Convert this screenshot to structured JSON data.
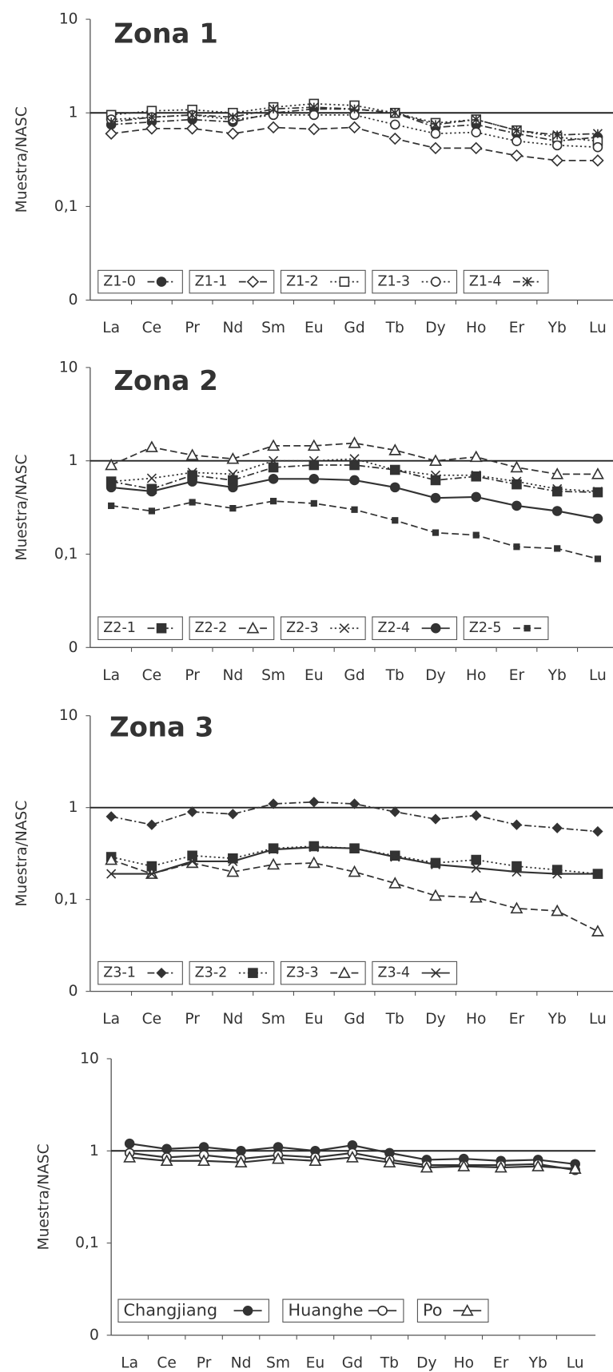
{
  "chart_data": [
    {
      "type": "line",
      "title": "Zona 1",
      "y_label": "Muestra/NASC",
      "log_scale": true,
      "hline": 1,
      "categories": [
        "La",
        "Ce",
        "Pr",
        "Nd",
        "Sm",
        "Eu",
        "Gd",
        "Tb",
        "Dy",
        "Ho",
        "Er",
        "Yb",
        "Lu"
      ],
      "ylim": [
        0.01,
        10
      ],
      "yticks": [
        {
          "value": 0.01,
          "label": "0"
        },
        {
          "value": 0.1,
          "label": "0,1"
        },
        1,
        10
      ],
      "series": [
        {
          "name": "Z1-0",
          "color": "#333333",
          "marker": "circle-filled",
          "dash": "dashdot",
          "values": [
            0.75,
            0.8,
            0.85,
            0.8,
            1.0,
            1.1,
            1.1,
            1.0,
            0.7,
            0.75,
            0.6,
            0.5,
            0.55
          ]
        },
        {
          "name": "Z1-1",
          "color": "#333333",
          "marker": "diamond-open",
          "dash": "dashed",
          "values": [
            0.6,
            0.68,
            0.68,
            0.6,
            0.7,
            0.67,
            0.7,
            0.53,
            0.42,
            0.42,
            0.35,
            0.31,
            0.31
          ]
        },
        {
          "name": "Z1-2",
          "color": "#333333",
          "marker": "square-open",
          "dash": "dotted",
          "values": [
            0.95,
            1.05,
            1.08,
            1.0,
            1.15,
            1.25,
            1.2,
            1.0,
            0.78,
            0.85,
            0.65,
            0.55,
            0.5
          ]
        },
        {
          "name": "Z1-3",
          "color": "#333333",
          "marker": "circle-open",
          "dash": "dotted",
          "values": [
            0.85,
            0.9,
            0.95,
            0.85,
            0.95,
            0.95,
            0.95,
            0.75,
            0.6,
            0.62,
            0.5,
            0.45,
            0.43
          ]
        },
        {
          "name": "Z1-4",
          "color": "#333333",
          "marker": "asterisk",
          "dash": "dashdot",
          "values": [
            0.8,
            0.9,
            0.95,
            0.9,
            1.1,
            1.15,
            1.1,
            1.0,
            0.75,
            0.85,
            0.65,
            0.58,
            0.6
          ]
        }
      ]
    },
    {
      "type": "line",
      "title": "Zona 2",
      "y_label": "Muestra/NASC",
      "log_scale": true,
      "hline": 1,
      "categories": [
        "La",
        "Ce",
        "Pr",
        "Nd",
        "Sm",
        "Eu",
        "Gd",
        "Tb",
        "Dy",
        "Ho",
        "Er",
        "Yb",
        "Lu"
      ],
      "ylim": [
        0.01,
        10
      ],
      "yticks": [
        {
          "value": 0.01,
          "label": "0"
        },
        {
          "value": 0.1,
          "label": "0,1"
        },
        1,
        10
      ],
      "series": [
        {
          "name": "Z2-1",
          "color": "#333333",
          "marker": "square-filled",
          "dash": "dashdot",
          "values": [
            0.6,
            0.5,
            0.7,
            0.62,
            0.85,
            0.9,
            0.9,
            0.8,
            0.62,
            0.68,
            0.56,
            0.47,
            0.46
          ]
        },
        {
          "name": "Z2-2",
          "color": "#333333",
          "marker": "triangle-open",
          "dash": "dashed",
          "values": [
            0.9,
            1.4,
            1.15,
            1.05,
            1.45,
            1.45,
            1.55,
            1.3,
            1.0,
            1.1,
            0.85,
            0.72,
            0.72
          ]
        },
        {
          "name": "Z2-3",
          "color": "#333333",
          "marker": "x",
          "dash": "dotted",
          "values": [
            0.6,
            0.65,
            0.75,
            0.72,
            1.0,
            1.0,
            1.05,
            0.8,
            0.7,
            0.7,
            0.6,
            0.5,
            0.47
          ]
        },
        {
          "name": "Z2-4",
          "color": "#333333",
          "marker": "circle-filled",
          "dash": "solid",
          "values": [
            0.52,
            0.47,
            0.6,
            0.52,
            0.64,
            0.64,
            0.62,
            0.52,
            0.4,
            0.41,
            0.33,
            0.29,
            0.24
          ]
        },
        {
          "name": "Z2-5",
          "color": "#333333",
          "marker": "small-square",
          "dash": "dashed",
          "values": [
            0.33,
            0.29,
            0.36,
            0.31,
            0.37,
            0.35,
            0.3,
            0.23,
            0.17,
            0.16,
            0.12,
            0.115,
            0.089
          ]
        }
      ]
    },
    {
      "type": "line",
      "title": "Zona 3",
      "y_label": "Muestra/NASC",
      "log_scale": true,
      "hline": 1,
      "categories": [
        "La",
        "Ce",
        "Pr",
        "Nd",
        "Sm",
        "Eu",
        "Gd",
        "Tb",
        "Dy",
        "Ho",
        "Er",
        "Yb",
        "Lu"
      ],
      "ylim": [
        0.01,
        10
      ],
      "yticks": [
        {
          "value": 0.01,
          "label": "0"
        },
        {
          "value": 0.1,
          "label": "0,1"
        },
        1,
        10
      ],
      "series": [
        {
          "name": "Z3-1",
          "color": "#333333",
          "marker": "diamond-filled",
          "dash": "dashdot",
          "values": [
            0.8,
            0.65,
            0.9,
            0.85,
            1.1,
            1.15,
            1.1,
            0.9,
            0.75,
            0.82,
            0.65,
            0.6,
            0.55
          ]
        },
        {
          "name": "Z3-2",
          "color": "#333333",
          "marker": "square-filled",
          "dash": "dotted",
          "values": [
            0.29,
            0.23,
            0.3,
            0.28,
            0.36,
            0.38,
            0.36,
            0.3,
            0.25,
            0.27,
            0.23,
            0.21,
            0.19
          ]
        },
        {
          "name": "Z3-3",
          "color": "#333333",
          "marker": "triangle-open",
          "dash": "dashed",
          "values": [
            0.27,
            0.19,
            0.25,
            0.2,
            0.24,
            0.25,
            0.2,
            0.15,
            0.11,
            0.105,
            0.08,
            0.075,
            0.045
          ]
        },
        {
          "name": "Z3-4",
          "color": "#333333",
          "marker": "x",
          "dash": "solid",
          "values": [
            0.19,
            0.19,
            0.26,
            0.26,
            0.35,
            0.37,
            0.36,
            0.29,
            0.24,
            0.22,
            0.2,
            0.19,
            0.19
          ]
        }
      ]
    },
    {
      "type": "line",
      "y_label": "Muestra/NASC",
      "log_scale": true,
      "hline": 1,
      "categories": [
        "La",
        "Ce",
        "Pr",
        "Nd",
        "Sm",
        "Eu",
        "Gd",
        "Tb",
        "Dy",
        "Ho",
        "Er",
        "Yb",
        "Lu"
      ],
      "ylim": [
        0.01,
        10
      ],
      "yticks": [
        {
          "value": 0.01,
          "label": "0"
        },
        {
          "value": 0.1,
          "label": "0,1"
        },
        1,
        10
      ],
      "series": [
        {
          "name": "Changjiang",
          "color": "#333333",
          "marker": "circle-filled",
          "dash": "solid",
          "values": [
            1.2,
            1.05,
            1.1,
            1.0,
            1.1,
            1.0,
            1.15,
            0.95,
            0.8,
            0.82,
            0.78,
            0.8,
            0.72
          ]
        },
        {
          "name": "Huanghe",
          "color": "#333333",
          "marker": "circle-open",
          "dash": "solid",
          "values": [
            0.95,
            0.85,
            0.9,
            0.82,
            0.9,
            0.85,
            0.95,
            0.8,
            0.7,
            0.7,
            0.7,
            0.72,
            0.62
          ]
        },
        {
          "name": "Po",
          "color": "#333333",
          "marker": "triangle-open",
          "dash": "solid",
          "values": [
            0.85,
            0.78,
            0.78,
            0.75,
            0.82,
            0.78,
            0.85,
            0.75,
            0.66,
            0.68,
            0.66,
            0.68,
            0.64
          ]
        }
      ]
    }
  ]
}
